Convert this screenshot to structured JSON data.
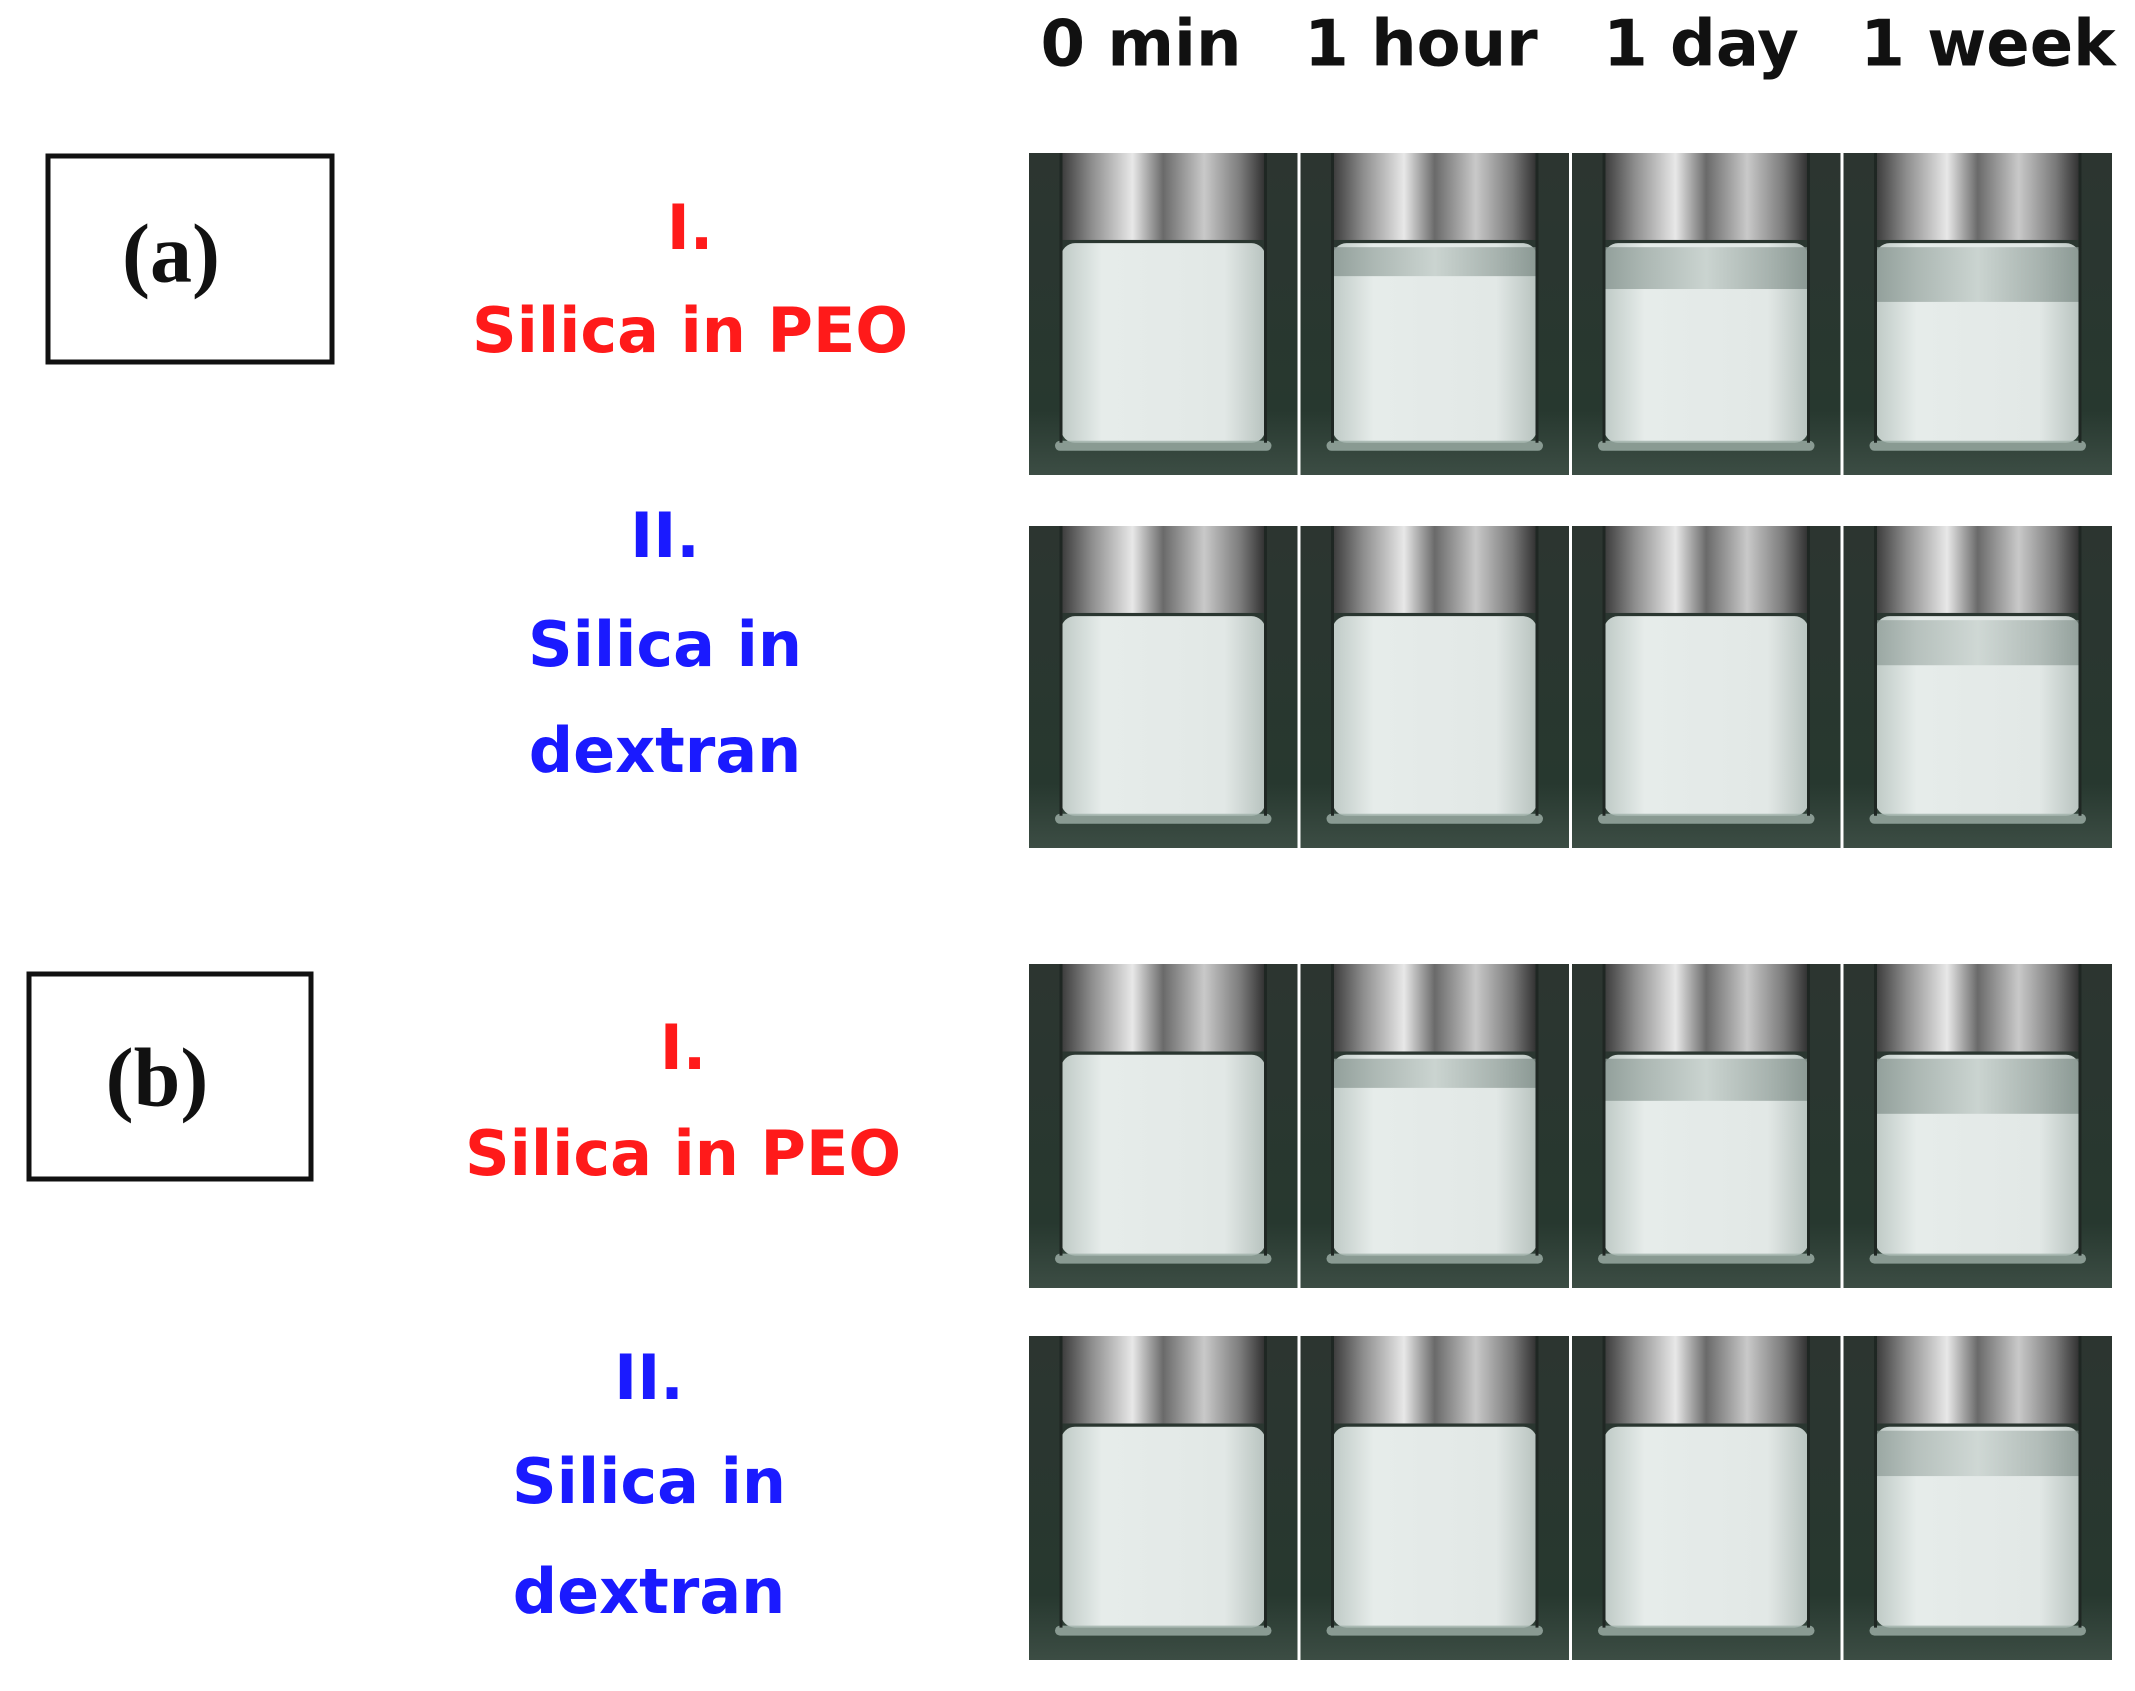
{
  "columns": [
    "0 min",
    "1 hour",
    "1 day",
    "1 week"
  ],
  "panels": [
    {
      "label": "(a)",
      "rows": [
        {
          "numeral": "I.",
          "lines": [
            "Silica in PEO"
          ]
        },
        {
          "numeral": "II.",
          "lines": [
            "Silica in",
            "dextran"
          ]
        }
      ]
    },
    {
      "label": "(b)",
      "rows": [
        {
          "numeral": "I.",
          "lines": [
            "Silica in PEO"
          ]
        },
        {
          "numeral": "II.",
          "lines": [
            "Silica in",
            "dextran"
          ]
        }
      ]
    }
  ]
}
